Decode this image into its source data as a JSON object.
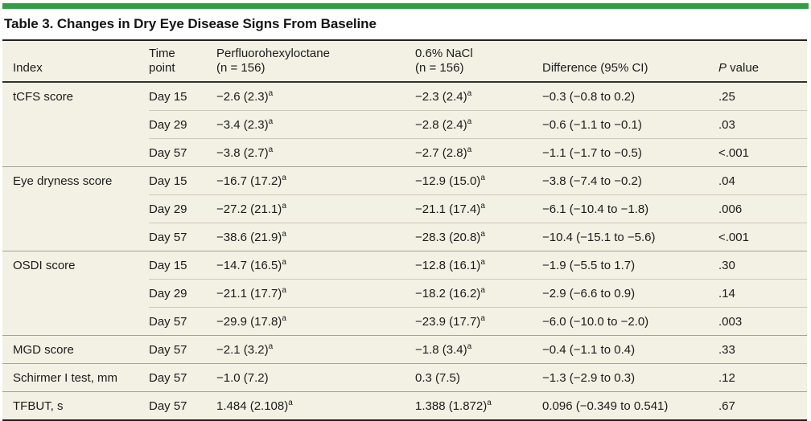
{
  "accent_color": "#2f9e44",
  "title": "Table 3. Changes in Dry Eye Disease Signs From Baseline",
  "table": {
    "headers": {
      "index": "Index",
      "time_point": {
        "line1": "Time",
        "line2": "point"
      },
      "drug": {
        "line1": "Perfluorohexyloctane",
        "line2": "(n = 156)"
      },
      "nacl": {
        "line1": "0.6% NaCl",
        "line2": "(n = 156)"
      },
      "difference": "Difference (95% CI)",
      "p": {
        "italic": "P",
        "rest": " value"
      }
    },
    "footnote_marker": "a",
    "groups": [
      {
        "index": "tCFS score",
        "rows": [
          {
            "time": "Day 15",
            "drug": "−2.6 (2.3)",
            "drug_sup": "a",
            "nacl": "−2.3 (2.4)",
            "nacl_sup": "a",
            "diff": "−0.3 (−0.8 to 0.2)",
            "p": ".25"
          },
          {
            "time": "Day 29",
            "drug": "−3.4 (2.3)",
            "drug_sup": "a",
            "nacl": "−2.8 (2.4)",
            "nacl_sup": "a",
            "diff": "−0.6 (−1.1 to −0.1)",
            "p": ".03"
          },
          {
            "time": "Day 57",
            "drug": "−3.8 (2.7)",
            "drug_sup": "a",
            "nacl": "−2.7 (2.8)",
            "nacl_sup": "a",
            "diff": "−1.1 (−1.7 to −0.5)",
            "p": "<.001"
          }
        ]
      },
      {
        "index": "Eye dryness score",
        "rows": [
          {
            "time": "Day 15",
            "drug": "−16.7 (17.2)",
            "drug_sup": "a",
            "nacl": "−12.9 (15.0)",
            "nacl_sup": "a",
            "diff": "−3.8 (−7.4 to −0.2)",
            "p": ".04"
          },
          {
            "time": "Day 29",
            "drug": "−27.2 (21.1)",
            "drug_sup": "a",
            "nacl": "−21.1 (17.4)",
            "nacl_sup": "a",
            "diff": "−6.1 (−10.4 to −1.8)",
            "p": ".006"
          },
          {
            "time": "Day 57",
            "drug": "−38.6 (21.9)",
            "drug_sup": "a",
            "nacl": "−28.3 (20.8)",
            "nacl_sup": "a",
            "diff": "−10.4 (−15.1 to −5.6)",
            "p": "<.001"
          }
        ]
      },
      {
        "index": "OSDI score",
        "rows": [
          {
            "time": "Day 15",
            "drug": "−14.7 (16.5)",
            "drug_sup": "a",
            "nacl": "−12.8 (16.1)",
            "nacl_sup": "a",
            "diff": "−1.9 (−5.5 to 1.7)",
            "p": ".30"
          },
          {
            "time": "Day 29",
            "drug": "−21.1 (17.7)",
            "drug_sup": "a",
            "nacl": "−18.2 (16.2)",
            "nacl_sup": "a",
            "diff": "−2.9 (−6.6 to 0.9)",
            "p": ".14"
          },
          {
            "time": "Day 57",
            "drug": "−29.9 (17.8)",
            "drug_sup": "a",
            "nacl": "−23.9 (17.7)",
            "nacl_sup": "a",
            "diff": "−6.0 (−10.0 to −2.0)",
            "p": ".003"
          }
        ]
      },
      {
        "index": "MGD score",
        "rows": [
          {
            "time": "Day 57",
            "drug": "−2.1 (3.2)",
            "drug_sup": "a",
            "nacl": "−1.8 (3.4)",
            "nacl_sup": "a",
            "diff": "−0.4 (−1.1 to 0.4)",
            "p": ".33"
          }
        ]
      },
      {
        "index": "Schirmer I test, mm",
        "rows": [
          {
            "time": "Day 57",
            "drug": "−1.0 (7.2)",
            "drug_sup": "",
            "nacl": "0.3 (7.5)",
            "nacl_sup": "",
            "diff": "−1.3 (−2.9 to 0.3)",
            "p": ".12"
          }
        ]
      },
      {
        "index": "TFBUT, s",
        "rows": [
          {
            "time": "Day 57",
            "drug": "1.484 (2.108)",
            "drug_sup": "a",
            "nacl": "1.388 (1.872)",
            "nacl_sup": "a",
            "diff": "0.096 (−0.349 to 0.541)",
            "p": ".67"
          }
        ]
      }
    ]
  }
}
